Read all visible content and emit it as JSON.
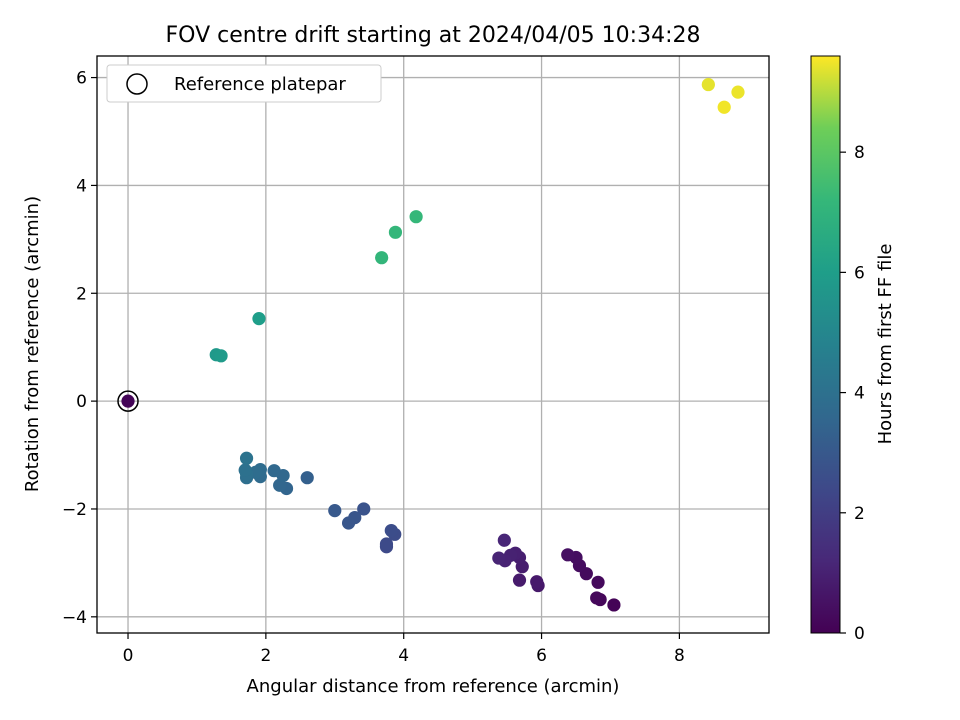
{
  "chart_data": {
    "type": "scatter",
    "title": "FOV centre drift starting at 2024/04/05 10:34:28",
    "xlabel": "Angular distance from reference (arcmin)",
    "ylabel": "Rotation from reference (arcmin)",
    "xlim": [
      -0.45,
      9.3
    ],
    "ylim": [
      -4.3,
      6.4
    ],
    "x_ticks": [
      0,
      2,
      4,
      6,
      8
    ],
    "y_ticks": [
      -4,
      -2,
      0,
      2,
      4,
      6
    ],
    "grid": true,
    "legend": {
      "position": "top-left",
      "entries": [
        "Reference platepar"
      ]
    },
    "reference_point": {
      "x": 0,
      "y": 0,
      "label": "Reference platepar"
    },
    "colorbar": {
      "label": "Hours from first FF file",
      "min": 0,
      "max": 9.6,
      "ticks": [
        0,
        2,
        4,
        6,
        8
      ],
      "colormap": "viridis"
    },
    "points": [
      {
        "x": 0.0,
        "y": 0.0,
        "hours": 0.1
      },
      {
        "x": 7.05,
        "y": -3.78,
        "hours": 0.1
      },
      {
        "x": 6.85,
        "y": -3.68,
        "hours": 0.15
      },
      {
        "x": 6.8,
        "y": -3.65,
        "hours": 0.2
      },
      {
        "x": 6.82,
        "y": -3.36,
        "hours": 0.25
      },
      {
        "x": 6.65,
        "y": -3.2,
        "hours": 0.3
      },
      {
        "x": 6.55,
        "y": -3.05,
        "hours": 0.35
      },
      {
        "x": 6.5,
        "y": -2.9,
        "hours": 0.4
      },
      {
        "x": 6.38,
        "y": -2.85,
        "hours": 0.45
      },
      {
        "x": 5.95,
        "y": -3.42,
        "hours": 0.7
      },
      {
        "x": 5.93,
        "y": -3.35,
        "hours": 0.75
      },
      {
        "x": 5.68,
        "y": -3.32,
        "hours": 0.8
      },
      {
        "x": 5.72,
        "y": -3.07,
        "hours": 0.85
      },
      {
        "x": 5.68,
        "y": -2.9,
        "hours": 0.9
      },
      {
        "x": 5.62,
        "y": -2.82,
        "hours": 0.95
      },
      {
        "x": 5.55,
        "y": -2.86,
        "hours": 1.0
      },
      {
        "x": 5.47,
        "y": -2.96,
        "hours": 1.05
      },
      {
        "x": 5.38,
        "y": -2.91,
        "hours": 1.1
      },
      {
        "x": 5.46,
        "y": -2.58,
        "hours": 1.15
      },
      {
        "x": 3.75,
        "y": -2.7,
        "hours": 2.4
      },
      {
        "x": 3.75,
        "y": -2.65,
        "hours": 2.45
      },
      {
        "x": 3.87,
        "y": -2.47,
        "hours": 2.5
      },
      {
        "x": 3.82,
        "y": -2.4,
        "hours": 2.55
      },
      {
        "x": 3.42,
        "y": -2.0,
        "hours": 2.8
      },
      {
        "x": 3.29,
        "y": -2.16,
        "hours": 2.85
      },
      {
        "x": 3.2,
        "y": -2.26,
        "hours": 2.9
      },
      {
        "x": 3.0,
        "y": -2.03,
        "hours": 3.0
      },
      {
        "x": 2.6,
        "y": -1.42,
        "hours": 3.3
      },
      {
        "x": 2.3,
        "y": -1.62,
        "hours": 3.5
      },
      {
        "x": 2.2,
        "y": -1.56,
        "hours": 3.55
      },
      {
        "x": 2.25,
        "y": -1.38,
        "hours": 3.6
      },
      {
        "x": 2.12,
        "y": -1.29,
        "hours": 3.65
      },
      {
        "x": 1.92,
        "y": -1.4,
        "hours": 3.75
      },
      {
        "x": 1.92,
        "y": -1.27,
        "hours": 3.8
      },
      {
        "x": 1.85,
        "y": -1.32,
        "hours": 3.85
      },
      {
        "x": 1.72,
        "y": -1.42,
        "hours": 3.9
      },
      {
        "x": 1.72,
        "y": -1.35,
        "hours": 3.95
      },
      {
        "x": 1.7,
        "y": -1.28,
        "hours": 4.0
      },
      {
        "x": 1.72,
        "y": -1.06,
        "hours": 4.1
      },
      {
        "x": 1.28,
        "y": 0.86,
        "hours": 5.8
      },
      {
        "x": 1.35,
        "y": 0.84,
        "hours": 5.85
      },
      {
        "x": 1.9,
        "y": 1.53,
        "hours": 6.0
      },
      {
        "x": 3.68,
        "y": 2.66,
        "hours": 7.1
      },
      {
        "x": 3.88,
        "y": 3.13,
        "hours": 7.15
      },
      {
        "x": 4.18,
        "y": 3.42,
        "hours": 7.2
      },
      {
        "x": 8.42,
        "y": 5.87,
        "hours": 9.4
      },
      {
        "x": 8.85,
        "y": 5.73,
        "hours": 9.45
      },
      {
        "x": 8.65,
        "y": 5.45,
        "hours": 9.5
      }
    ]
  }
}
